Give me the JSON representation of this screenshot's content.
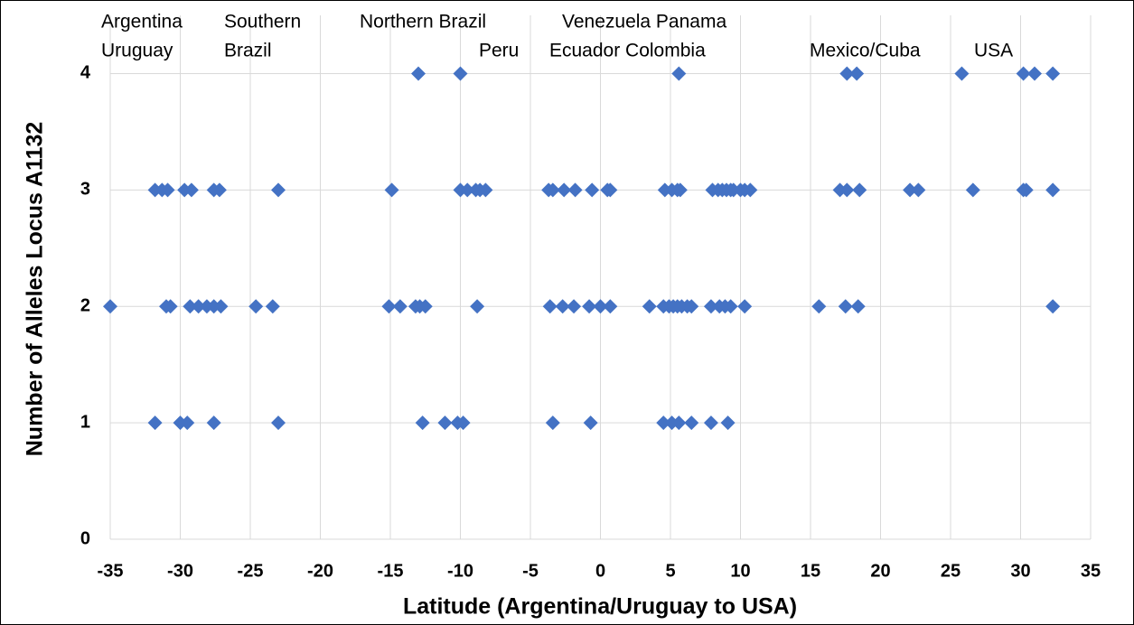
{
  "chart_data": {
    "type": "scatter",
    "xlabel": "Latitude (Argentina/Uruguay to USA)",
    "ylabel": "Number of Alleles Locus A1132",
    "annotations": [
      "Argentina",
      "Uruguay",
      "Southern",
      "Brazil",
      "Northern Brazil",
      "Peru",
      "Venezuela Panama",
      "Ecuador Colombia",
      "Mexico/Cuba",
      "USA"
    ],
    "color": "#4472c4",
    "grid": true,
    "xlim": [
      -35,
      35
    ],
    "xticks": [
      -35,
      -30,
      -25,
      -20,
      -15,
      -10,
      -5,
      0,
      5,
      10,
      15,
      20,
      25,
      30,
      35
    ],
    "ylim": [
      0,
      4.5
    ],
    "yticks": [
      0,
      1,
      2,
      3,
      4
    ],
    "x": [
      -13.0,
      -10.0,
      5.6,
      17.6,
      18.3,
      25.8,
      30.2,
      31.0,
      32.3,
      -31.8,
      -31.3,
      -30.9,
      -29.7,
      -29.2,
      -27.6,
      -27.2,
      -23.0,
      -14.9,
      -10.0,
      -9.5,
      -8.9,
      -8.6,
      -8.2,
      -3.7,
      -3.4,
      -2.6,
      -1.8,
      -0.6,
      0.5,
      0.7,
      4.6,
      5.1,
      5.5,
      5.7,
      8.0,
      8.4,
      8.7,
      9.0,
      9.3,
      9.5,
      10.0,
      10.3,
      10.7,
      17.1,
      17.6,
      18.5,
      22.1,
      22.7,
      26.6,
      30.2,
      30.4,
      32.3,
      -35.0,
      -31.0,
      -30.7,
      -29.3,
      -28.7,
      -28.1,
      -27.6,
      -27.1,
      -24.6,
      -23.4,
      -15.1,
      -14.3,
      -13.2,
      -12.9,
      -12.5,
      -8.8,
      -3.6,
      -2.7,
      -1.9,
      -0.8,
      0,
      0.7,
      3.5,
      4.5,
      4.9,
      5.2,
      5.5,
      5.8,
      6.2,
      6.5,
      7.9,
      8.5,
      8.9,
      9.3,
      10.3,
      15.6,
      17.5,
      18.4,
      32.3,
      -31.8,
      -30.0,
      -29.5,
      -27.6,
      -23.0,
      -12.7,
      -11.1,
      -10.2,
      -9.8,
      -3.4,
      -0.7,
      4.5,
      5.1,
      5.6,
      6.5,
      7.9,
      9.1
    ],
    "y": [
      4,
      4,
      4,
      4,
      4,
      4,
      4,
      4,
      4,
      3,
      3,
      3,
      3,
      3,
      3,
      3,
      3,
      3,
      3,
      3,
      3,
      3,
      3,
      3,
      3,
      3,
      3,
      3,
      3,
      3,
      3,
      3,
      3,
      3,
      3,
      3,
      3,
      3,
      3,
      3,
      3,
      3,
      3,
      3,
      3,
      3,
      3,
      3,
      3,
      3,
      3,
      3,
      2,
      2,
      2,
      2,
      2,
      2,
      2,
      2,
      2,
      2,
      2,
      2,
      2,
      2,
      2,
      2,
      2,
      2,
      2,
      2,
      2,
      2,
      2,
      2,
      2,
      2,
      2,
      2,
      2,
      2,
      2,
      2,
      2,
      2,
      2,
      2,
      2,
      2,
      2,
      1,
      1,
      1,
      1,
      1,
      1,
      1,
      1,
      1,
      1,
      1,
      1,
      1,
      1,
      1,
      1,
      1
    ]
  }
}
